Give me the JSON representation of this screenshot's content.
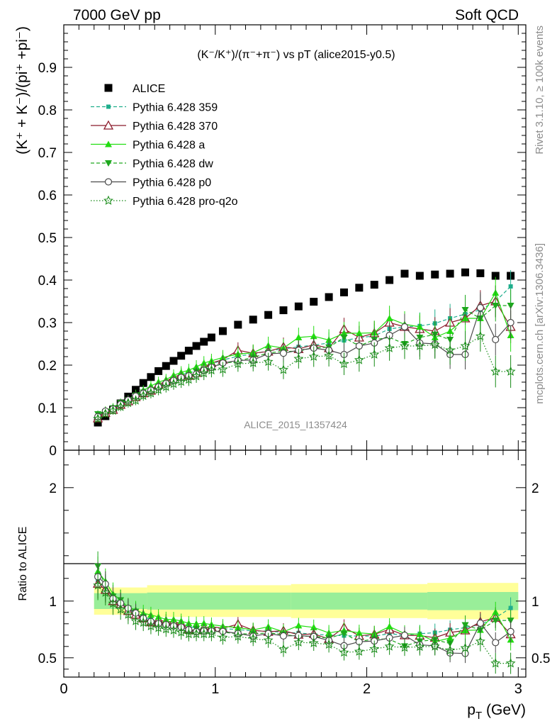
{
  "header": {
    "left": "7000 GeV pp",
    "right": "Soft QCD"
  },
  "side_labels": {
    "rivet": "Rivet 3.1.10, ≥ 100k events",
    "mcplots": "mcplots.cern.ch [arXiv:1306.3436]"
  },
  "colors": {
    "alice": "#000000",
    "p359": "#1fae8c",
    "p370": "#8b1a2a",
    "a": "#22dd11",
    "dw": "#1da81d",
    "p0": "#4a4a4a",
    "proq2o": "#158a15",
    "band_inner": "#99ee99",
    "band_outer": "#ffff99"
  },
  "chart_data": [
    {
      "type": "scatter",
      "panel": "main",
      "title": "(K⁻/K⁺)/(π⁻+π⁻) vs pT (alice2015-y0.5)",
      "ylabel": "(K⁺ + K⁻)/(pi⁺ +pi⁻)",
      "watermark": "ALICE_2015_I1357424",
      "xlim": [
        0,
        3.05
      ],
      "ylim": [
        0,
        1.0
      ],
      "yticks": [
        "0",
        "0.1",
        "0.2",
        "0.3",
        "0.4",
        "0.5",
        "0.6",
        "0.7",
        "0.8",
        "0.9"
      ],
      "legend_position": "top-left",
      "x": [
        0.225,
        0.275,
        0.325,
        0.375,
        0.425,
        0.475,
        0.525,
        0.575,
        0.625,
        0.675,
        0.725,
        0.775,
        0.825,
        0.875,
        0.925,
        0.975,
        1.05,
        1.15,
        1.25,
        1.35,
        1.45,
        1.55,
        1.65,
        1.75,
        1.85,
        1.95,
        2.05,
        2.15,
        2.25,
        2.35,
        2.45,
        2.55,
        2.65,
        2.75,
        2.85,
        2.95
      ],
      "series": [
        {
          "name": "ALICE",
          "key": "alice",
          "marker": "square",
          "line": "none",
          "values": [
            0.065,
            0.08,
            0.095,
            0.11,
            0.126,
            0.142,
            0.158,
            0.172,
            0.186,
            0.198,
            0.21,
            0.222,
            0.234,
            0.245,
            0.255,
            0.265,
            0.28,
            0.295,
            0.307,
            0.318,
            0.329,
            0.338,
            0.349,
            0.36,
            0.371,
            0.382,
            0.389,
            0.4,
            0.415,
            0.41,
            0.413,
            0.415,
            0.418,
            0.416,
            0.41,
            0.41
          ]
        },
        {
          "name": "Pythia 6.428 359",
          "key": "p359",
          "marker": "smallsquare",
          "line": "dashed",
          "values": [
            0.077,
            0.089,
            0.099,
            0.108,
            0.116,
            0.127,
            0.136,
            0.144,
            0.152,
            0.161,
            0.171,
            0.178,
            0.182,
            0.186,
            0.197,
            0.203,
            0.212,
            0.221,
            0.226,
            0.234,
            0.238,
            0.243,
            0.247,
            0.252,
            0.258,
            0.264,
            0.269,
            0.285,
            0.29,
            0.292,
            0.298,
            0.31,
            0.32,
            0.33,
            0.35,
            0.385
          ]
        },
        {
          "name": "Pythia 6.428 370",
          "key": "p370",
          "marker": "triangle-open",
          "line": "solid",
          "values": [
            0.075,
            0.088,
            0.095,
            0.107,
            0.115,
            0.125,
            0.134,
            0.14,
            0.155,
            0.162,
            0.172,
            0.178,
            0.175,
            0.182,
            0.195,
            0.205,
            0.213,
            0.235,
            0.228,
            0.232,
            0.243,
            0.238,
            0.248,
            0.24,
            0.285,
            0.265,
            0.275,
            0.3,
            0.29,
            0.285,
            0.28,
            0.3,
            0.31,
            0.34,
            0.35,
            0.29
          ]
        },
        {
          "name": "Pythia 6.428 a",
          "key": "a",
          "marker": "triangle",
          "line": "solid",
          "values": [
            0.082,
            0.094,
            0.101,
            0.111,
            0.119,
            0.131,
            0.141,
            0.151,
            0.16,
            0.166,
            0.176,
            0.183,
            0.188,
            0.196,
            0.205,
            0.21,
            0.218,
            0.226,
            0.229,
            0.246,
            0.24,
            0.265,
            0.268,
            0.259,
            0.275,
            0.275,
            0.276,
            0.31,
            0.296,
            0.29,
            0.265,
            0.28,
            0.31,
            0.31,
            0.37,
            0.27
          ]
        },
        {
          "name": "Pythia 6.428 dw",
          "key": "dw",
          "marker": "triangle-down",
          "line": "dashed",
          "values": [
            0.085,
            0.09,
            0.099,
            0.111,
            0.118,
            0.129,
            0.136,
            0.139,
            0.148,
            0.155,
            0.163,
            0.168,
            0.17,
            0.185,
            0.19,
            0.196,
            0.203,
            0.21,
            0.218,
            0.229,
            0.232,
            0.233,
            0.241,
            0.242,
            0.265,
            0.245,
            0.26,
            0.265,
            0.25,
            0.265,
            0.272,
            0.26,
            0.33,
            0.31,
            0.34,
            0.34
          ]
        },
        {
          "name": "Pythia 6.428 p0",
          "key": "p0",
          "marker": "circle-open",
          "line": "solid",
          "values": [
            0.079,
            0.092,
            0.097,
            0.108,
            0.118,
            0.127,
            0.134,
            0.141,
            0.149,
            0.157,
            0.164,
            0.171,
            0.175,
            0.179,
            0.188,
            0.195,
            0.205,
            0.211,
            0.212,
            0.227,
            0.228,
            0.235,
            0.24,
            0.235,
            0.225,
            0.245,
            0.252,
            0.27,
            0.29,
            0.252,
            0.25,
            0.225,
            0.225,
            0.335,
            0.26,
            0.3
          ]
        },
        {
          "name": "Pythia 6.428 pro-q2o",
          "key": "proq2o",
          "marker": "star",
          "line": "dotted",
          "values": [
            0.074,
            0.086,
            0.093,
            0.102,
            0.111,
            0.117,
            0.128,
            0.134,
            0.142,
            0.149,
            0.156,
            0.161,
            0.166,
            0.174,
            0.181,
            0.188,
            0.19,
            0.203,
            0.205,
            0.208,
            0.189,
            0.215,
            0.22,
            0.222,
            0.203,
            0.212,
            0.225,
            0.24,
            0.245,
            0.245,
            0.248,
            0.235,
            0.245,
            0.268,
            0.185,
            0.185
          ]
        }
      ]
    },
    {
      "type": "scatter",
      "panel": "ratio",
      "ylabel": "Ratio to ALICE",
      "xlabel": "p_T (GeV)",
      "xlim": [
        0,
        3.05
      ],
      "ylim": [
        0.33,
        2.33
      ],
      "yticks": [
        "0.5",
        "1",
        "2"
      ],
      "xticks": [
        "0",
        "1",
        "2",
        "3"
      ],
      "band_inner": {
        "x": [
          0.2,
          0.55,
          1.5,
          2.4,
          3.0
        ],
        "values": [
          0.07,
          0.075,
          0.075,
          0.08,
          0.085
        ]
      },
      "band_outer": {
        "x": [
          0.2,
          0.55,
          1.5,
          2.4,
          3.0
        ],
        "values": [
          0.12,
          0.14,
          0.15,
          0.16,
          0.17
        ]
      }
    }
  ]
}
